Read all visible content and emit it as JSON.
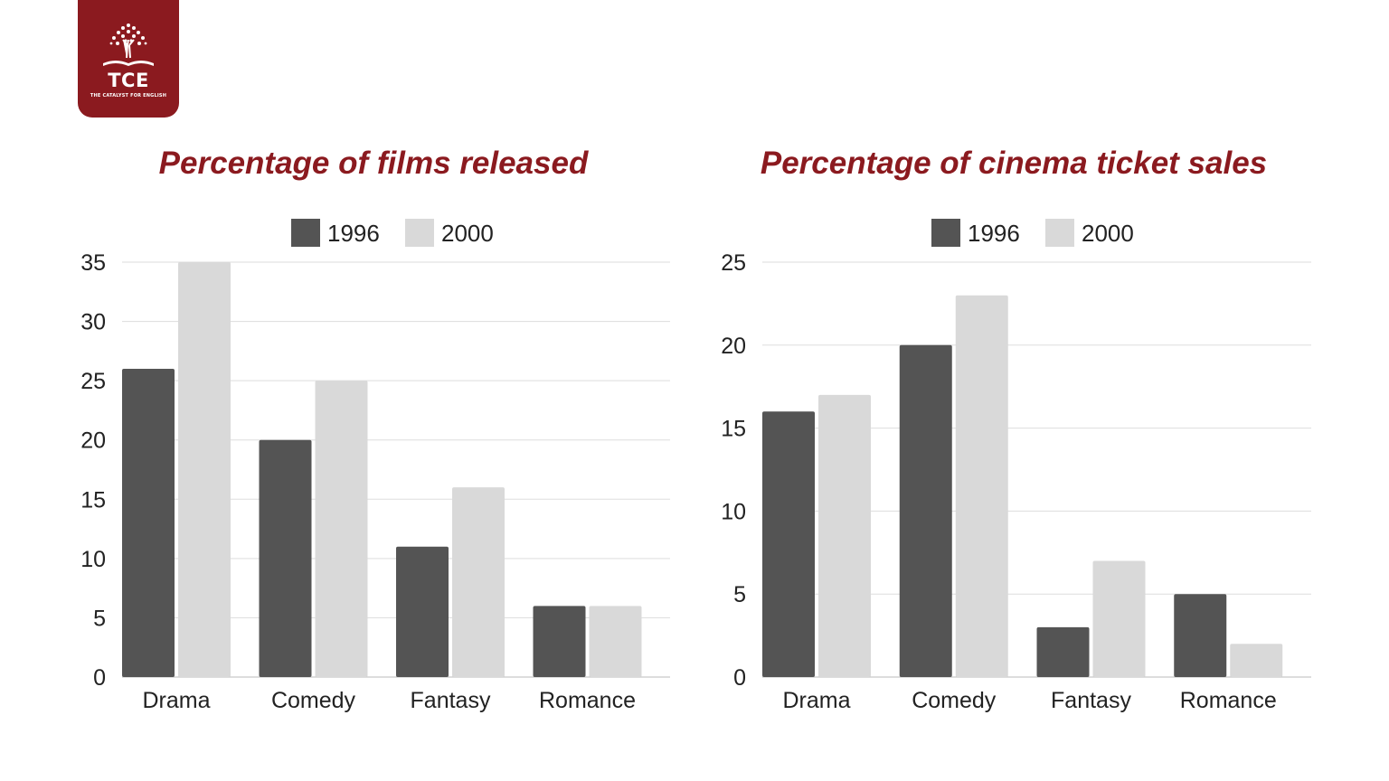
{
  "logo": {
    "name": "TCE",
    "tagline": "THE CATALYST FOR ENGLISH",
    "color": "#8b1a1f"
  },
  "colors": {
    "title": "#8b1a1f",
    "series_1996": "#545454",
    "series_2000": "#d9d9d9",
    "grid": "#dddddd",
    "text": "#222222"
  },
  "chart_data": [
    {
      "type": "bar",
      "title": "Percentage of films released",
      "categories": [
        "Drama",
        "Comedy",
        "Fantasy",
        "Romance"
      ],
      "series": [
        {
          "name": "1996",
          "values": [
            26,
            20,
            11,
            6
          ]
        },
        {
          "name": "2000",
          "values": [
            35,
            25,
            16,
            6
          ]
        }
      ],
      "yticks": [
        0,
        5,
        10,
        15,
        20,
        25,
        30,
        35
      ],
      "ylim": [
        0,
        35
      ],
      "xlabel": "",
      "ylabel": "",
      "legend": "top-center",
      "grid": true
    },
    {
      "type": "bar",
      "title": "Percentage of cinema ticket sales",
      "categories": [
        "Drama",
        "Comedy",
        "Fantasy",
        "Romance"
      ],
      "series": [
        {
          "name": "1996",
          "values": [
            16,
            20,
            3,
            5
          ]
        },
        {
          "name": "2000",
          "values": [
            17,
            23,
            7,
            2
          ]
        }
      ],
      "yticks": [
        0,
        5,
        10,
        15,
        20,
        25
      ],
      "ylim": [
        0,
        25
      ],
      "xlabel": "",
      "ylabel": "",
      "legend": "top-center",
      "grid": true
    }
  ]
}
